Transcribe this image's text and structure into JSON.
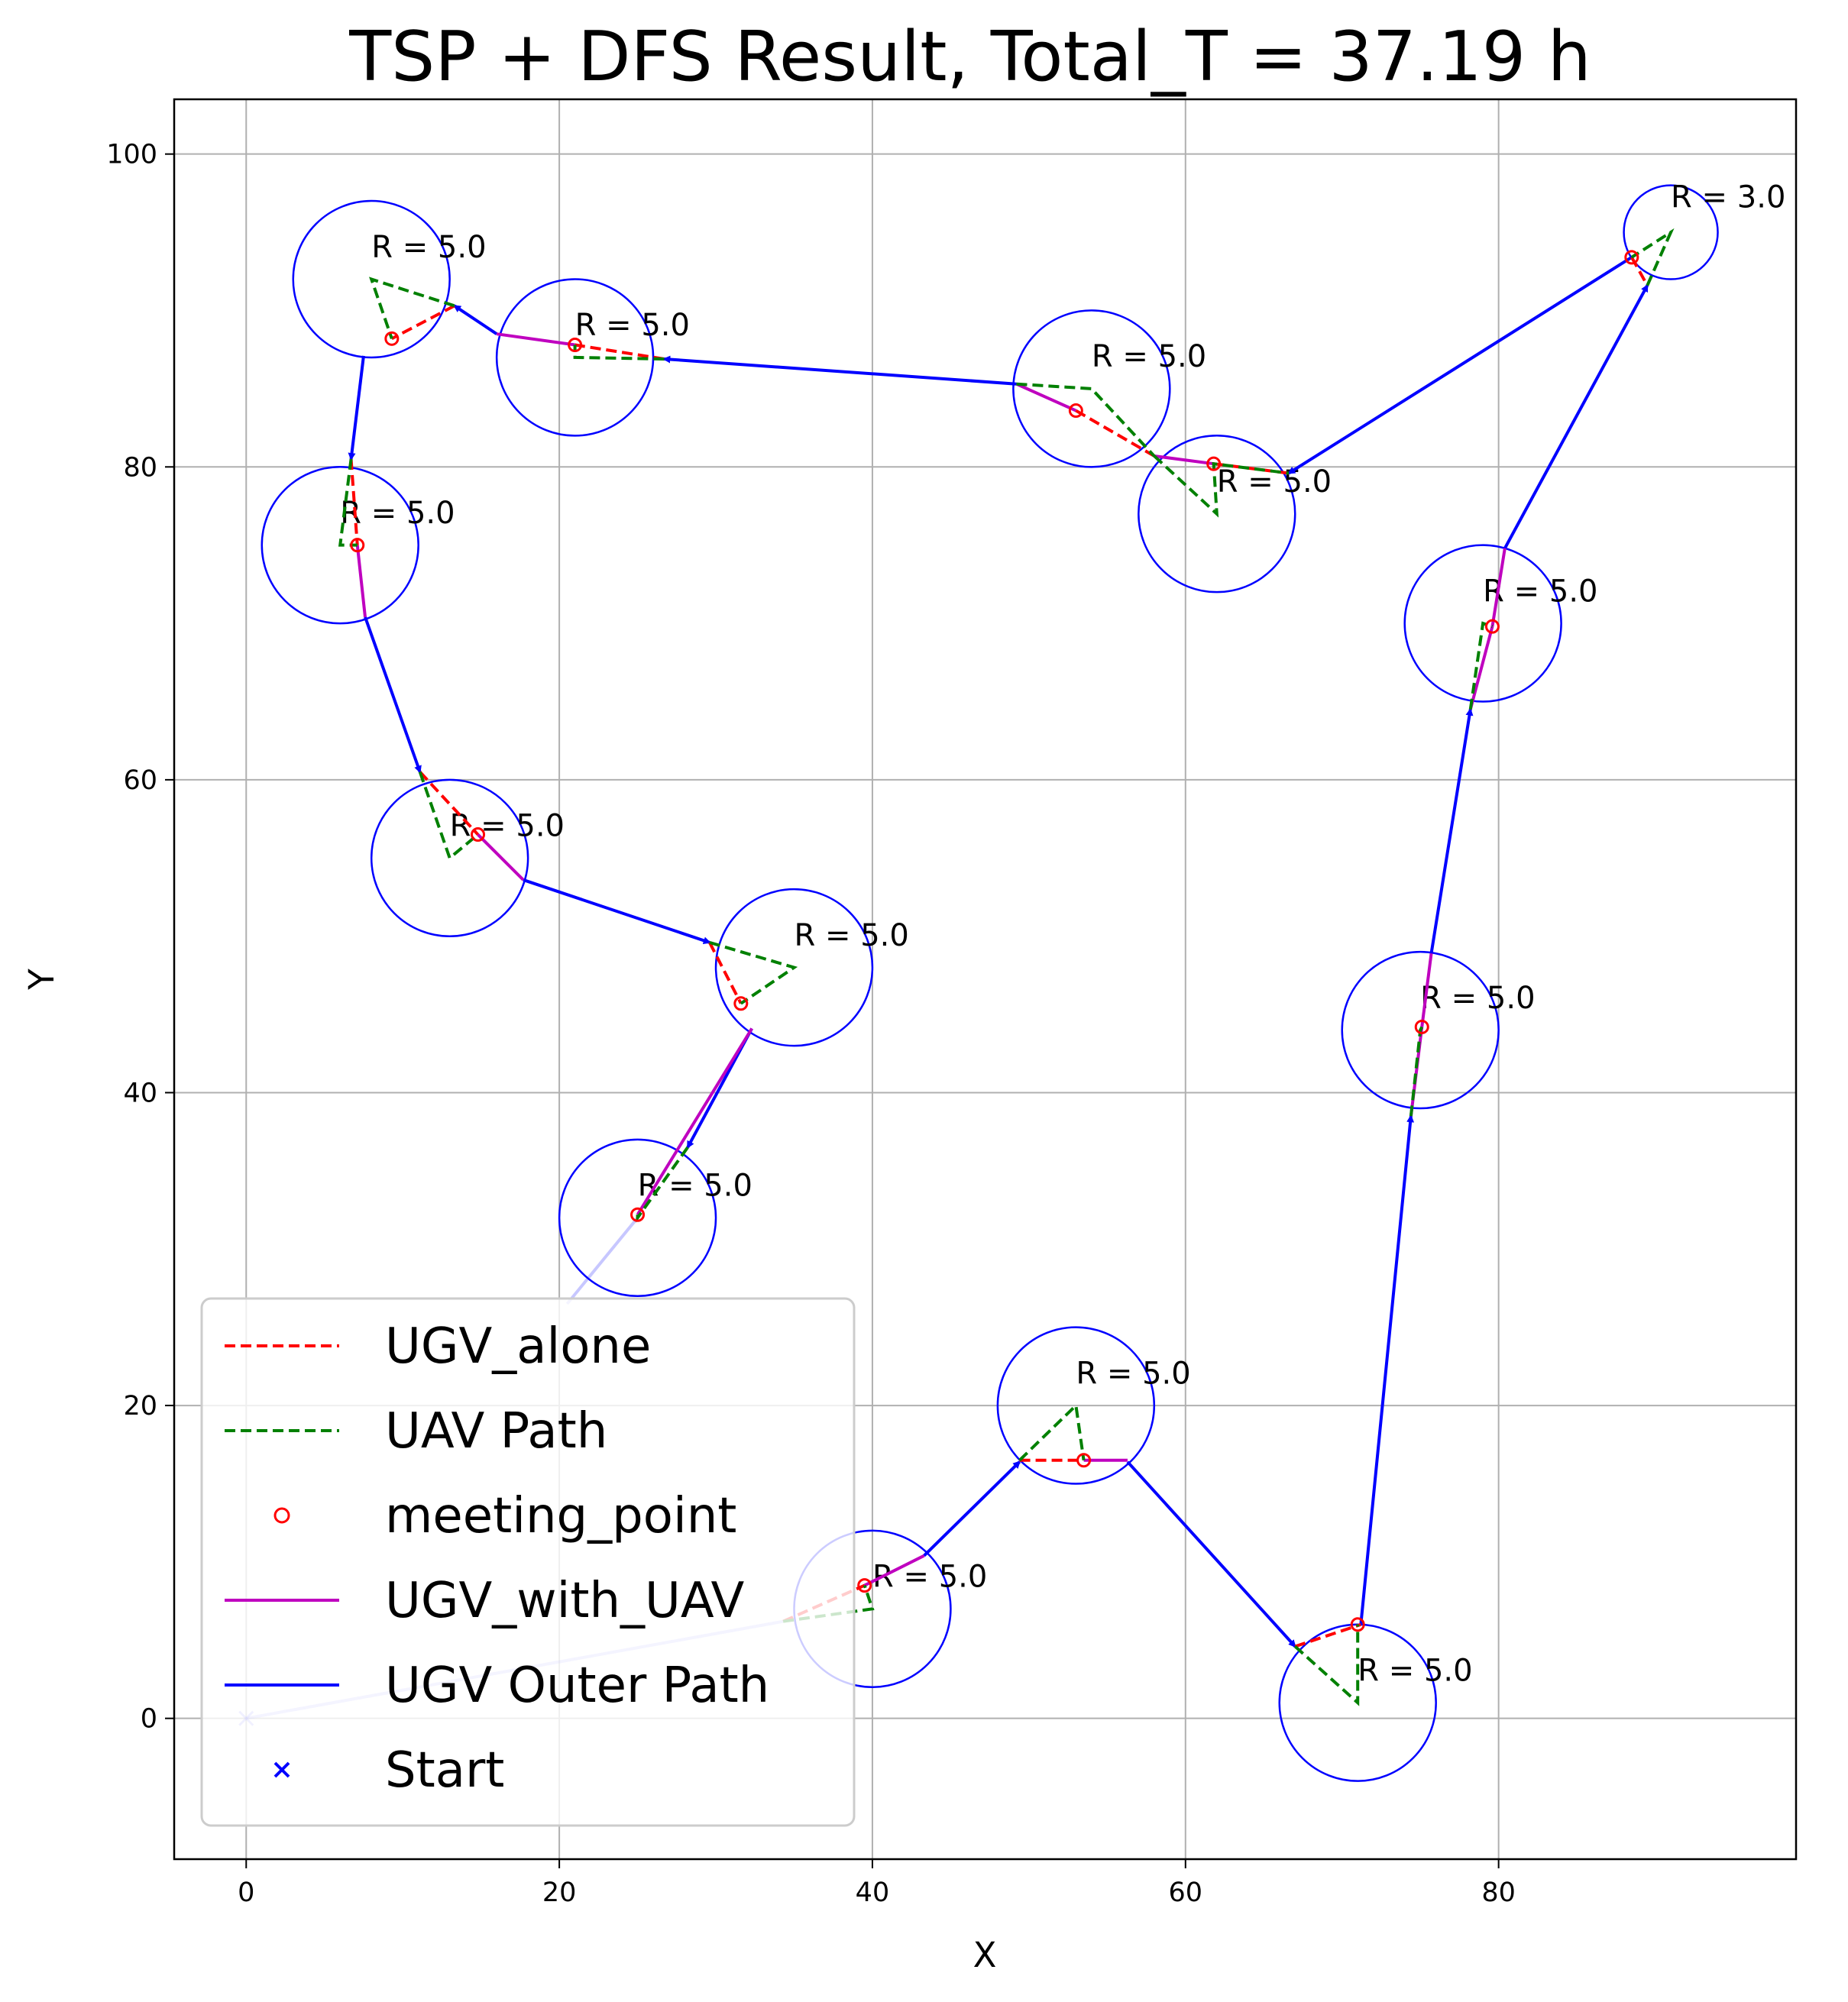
{
  "chart_data": {
    "type": "scatter",
    "title": "TSP + DFS Result, Total_T = 37.19 h",
    "xlabel": "X",
    "ylabel": "Y",
    "xlim": [
      -4.6,
      99
    ],
    "ylim": [
      -9,
      103.5
    ],
    "xticks": [
      0,
      20,
      40,
      60,
      80
    ],
    "yticks": [
      0,
      20,
      40,
      60,
      80,
      100
    ],
    "grid": true,
    "legend_position": "lower-left",
    "colors": {
      "ugv_alone": "#ff0000",
      "uav_path": "#008000",
      "meeting_point": "#ff0000",
      "ugv_with_uav": "#bf00bf",
      "outer_path": "#0000ff",
      "start": "#0000ff",
      "circle": "#0000ff"
    },
    "legend": [
      {
        "key": "ugv_alone",
        "label": "UGV_alone",
        "style": "dashed-line"
      },
      {
        "key": "uav_path",
        "label": "UAV Path",
        "style": "dashed-line"
      },
      {
        "key": "meeting_point",
        "label": "meeting_point",
        "style": "hollow-circle"
      },
      {
        "key": "ugv_with_uav",
        "label": "UGV_with_UAV",
        "style": "solid-line"
      },
      {
        "key": "outer_path",
        "label": "UGV Outer Path",
        "style": "solid-line"
      },
      {
        "key": "start",
        "label": "Start",
        "style": "x-marker"
      }
    ],
    "start": [
      0,
      0
    ],
    "circles": [
      {
        "center": [
          8,
          92
        ],
        "r": 5,
        "label": "R = 5.0"
      },
      {
        "center": [
          21,
          87
        ],
        "r": 5,
        "label": "R = 5.0"
      },
      {
        "center": [
          54,
          85
        ],
        "r": 5,
        "label": "R = 5.0"
      },
      {
        "center": [
          62,
          77
        ],
        "r": 5,
        "label": "R = 5.0"
      },
      {
        "center": [
          91,
          95
        ],
        "r": 3,
        "label": "R = 3.0"
      },
      {
        "center": [
          6,
          75
        ],
        "r": 5,
        "label": "R = 5.0"
      },
      {
        "center": [
          79,
          70
        ],
        "r": 5,
        "label": "R = 5.0"
      },
      {
        "center": [
          13,
          55
        ],
        "r": 5,
        "label": "R = 5.0"
      },
      {
        "center": [
          35,
          48
        ],
        "r": 5,
        "label": "R = 5.0"
      },
      {
        "center": [
          75,
          44
        ],
        "r": 5,
        "label": "R = 5.0"
      },
      {
        "center": [
          25,
          32
        ],
        "r": 5,
        "label": "R = 5.0"
      },
      {
        "center": [
          53,
          20
        ],
        "r": 5,
        "label": "R = 5.0"
      },
      {
        "center": [
          40,
          7
        ],
        "r": 5,
        "label": "R = 5.0"
      },
      {
        "center": [
          71,
          1
        ],
        "r": 5,
        "label": "R = 5.0"
      }
    ],
    "outer_path_segments": [
      {
        "from": [
          0,
          0
        ],
        "to": [
          34.3,
          6.2
        ],
        "faded": true
      },
      {
        "from": [
          43.3,
          10.4
        ],
        "to": [
          49.4,
          16.4
        ],
        "faded": false
      },
      {
        "from": [
          56.3,
          16.4
        ],
        "to": [
          67.0,
          4.6
        ],
        "faded": false
      },
      {
        "from": [
          71.2,
          6.0
        ],
        "to": [
          74.4,
          38.5
        ],
        "faded": false
      },
      {
        "from": [
          75.7,
          48.9
        ],
        "to": [
          78.2,
          64.5
        ],
        "faded": false
      },
      {
        "from": [
          80.4,
          74.8
        ],
        "to": [
          89.5,
          91.6
        ],
        "faded": false
      },
      {
        "from": [
          88.5,
          93.4
        ],
        "to": [
          66.6,
          79.6
        ],
        "faded": false
      },
      {
        "from": [
          49.2,
          85.3
        ],
        "to": [
          26.7,
          86.9
        ],
        "faded": false
      },
      {
        "from": [
          16.0,
          88.5
        ],
        "to": [
          13.3,
          90.3
        ],
        "faded": false
      },
      {
        "from": [
          7.5,
          87.1
        ],
        "to": [
          6.7,
          80.5
        ],
        "faded": false
      },
      {
        "from": [
          7.6,
          70.4
        ],
        "to": [
          11.1,
          60.5
        ],
        "faded": false
      },
      {
        "from": [
          17.7,
          53.6
        ],
        "to": [
          29.6,
          49.6
        ],
        "faded": false
      },
      {
        "from": [
          32.3,
          44.1
        ],
        "to": [
          28.2,
          36.5
        ],
        "faded": false
      },
      {
        "from": [
          25.0,
          32.0
        ],
        "to": [
          20.5,
          26.5
        ],
        "faded": true
      }
    ],
    "ugv_with_uav_segments": [
      [
        [
          39.5,
          8.5
        ],
        [
          43.3,
          10.4
        ]
      ],
      [
        [
          53.5,
          16.5
        ],
        [
          56.3,
          16.5
        ]
      ],
      [
        [
          74.4,
          38.5
        ],
        [
          75.1,
          44.2
        ]
      ],
      [
        [
          75.1,
          44.2
        ],
        [
          75.7,
          48.9
        ]
      ],
      [
        [
          78.2,
          64.5
        ],
        [
          79.6,
          69.8
        ]
      ],
      [
        [
          79.6,
          69.8
        ],
        [
          80.4,
          74.8
        ]
      ],
      [
        [
          49.2,
          85.3
        ],
        [
          53.0,
          83.6
        ]
      ],
      [
        [
          58.0,
          80.7
        ],
        [
          61.8,
          80.2
        ]
      ],
      [
        [
          7.1,
          75.0
        ],
        [
          7.6,
          70.4
        ]
      ],
      [
        [
          14.8,
          56.5
        ],
        [
          17.7,
          53.6
        ]
      ],
      [
        [
          25.0,
          32.2
        ],
        [
          32.3,
          44.1
        ]
      ],
      [
        [
          21.0,
          87.8
        ],
        [
          16.0,
          88.5
        ]
      ]
    ],
    "ugv_alone_segments": [
      [
        [
          34.3,
          6.2
        ],
        [
          39.5,
          8.5
        ]
      ],
      [
        [
          49.4,
          16.5
        ],
        [
          53.5,
          16.5
        ]
      ],
      [
        [
          67.0,
          4.6
        ],
        [
          71.2,
          6.0
        ]
      ],
      [
        [
          88.5,
          93.4
        ],
        [
          89.5,
          91.6
        ]
      ],
      [
        [
          53.0,
          83.6
        ],
        [
          58.0,
          80.7
        ]
      ],
      [
        [
          61.8,
          80.2
        ],
        [
          66.6,
          79.6
        ]
      ],
      [
        [
          26.7,
          86.9
        ],
        [
          21.0,
          87.8
        ]
      ],
      [
        [
          13.3,
          90.3
        ],
        [
          9.3,
          88.2
        ]
      ],
      [
        [
          6.7,
          80.5
        ],
        [
          7.1,
          75.0
        ]
      ],
      [
        [
          11.1,
          60.5
        ],
        [
          14.8,
          56.5
        ]
      ],
      [
        [
          29.6,
          49.6
        ],
        [
          31.6,
          45.7
        ]
      ]
    ],
    "uav_paths": [
      [
        [
          34.3,
          6.2
        ],
        [
          40.0,
          7.0
        ],
        [
          39.5,
          8.5
        ]
      ],
      [
        [
          49.4,
          16.5
        ],
        [
          53.0,
          20.0
        ],
        [
          53.5,
          16.5
        ]
      ],
      [
        [
          67.0,
          4.6
        ],
        [
          71.0,
          1.0
        ],
        [
          71.0,
          6.0
        ]
      ],
      [
        [
          74.4,
          38.5
        ],
        [
          75.0,
          44.0
        ],
        [
          75.1,
          44.2
        ]
      ],
      [
        [
          78.2,
          64.5
        ],
        [
          79.0,
          70.0
        ],
        [
          79.6,
          69.8
        ]
      ],
      [
        [
          89.5,
          91.6
        ],
        [
          91.0,
          95.0
        ],
        [
          88.5,
          93.4
        ]
      ],
      [
        [
          58.0,
          80.7
        ],
        [
          62.0,
          77.0
        ],
        [
          61.8,
          80.2
        ],
        [
          66.6,
          79.6
        ]
      ],
      [
        [
          49.2,
          85.3
        ],
        [
          54.0,
          85.0
        ],
        [
          58.0,
          80.7
        ]
      ],
      [
        [
          26.7,
          86.9
        ],
        [
          21.0,
          87.0
        ],
        [
          21.0,
          87.8
        ]
      ],
      [
        [
          13.3,
          90.3
        ],
        [
          8.0,
          92.0
        ],
        [
          9.3,
          88.2
        ]
      ],
      [
        [
          6.7,
          80.5
        ],
        [
          6.0,
          75.0
        ],
        [
          7.1,
          75.0
        ]
      ],
      [
        [
          11.1,
          60.5
        ],
        [
          13.0,
          55.0
        ],
        [
          14.8,
          56.5
        ]
      ],
      [
        [
          29.6,
          49.6
        ],
        [
          35.0,
          48.0
        ],
        [
          31.6,
          45.7
        ]
      ],
      [
        [
          28.2,
          36.5
        ],
        [
          25.0,
          32.0
        ],
        [
          25.0,
          32.2
        ]
      ]
    ],
    "meeting_points": [
      [
        39.5,
        8.5
      ],
      [
        53.5,
        16.5
      ],
      [
        71.0,
        6.0
      ],
      [
        75.1,
        44.2
      ],
      [
        79.6,
        69.8
      ],
      [
        88.5,
        93.4
      ],
      [
        61.8,
        80.2
      ],
      [
        53.0,
        83.6
      ],
      [
        21.0,
        87.8
      ],
      [
        9.3,
        88.2
      ],
      [
        7.1,
        75.0
      ],
      [
        14.8,
        56.5
      ],
      [
        31.6,
        45.7
      ],
      [
        25.0,
        32.2
      ]
    ]
  }
}
